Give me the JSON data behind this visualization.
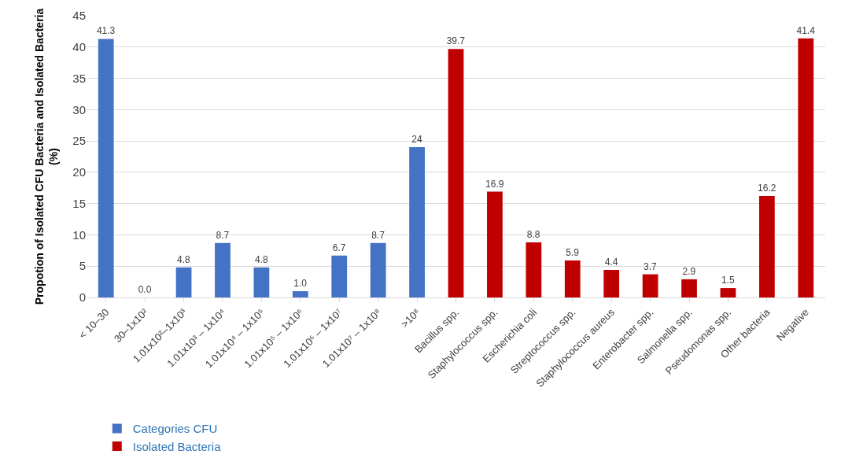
{
  "chart_data": {
    "type": "bar",
    "ylabel": "Propotion of Isolated CFU Bacteria and Isolated Bacteria (%)",
    "categories": [
      "< 10–30",
      "30–1x10²",
      "1.01x10²–1x10³",
      "1.01x10³ – 1x10⁴",
      "1.01x10⁴ – 1x10⁵",
      "1.01x10⁵ – 1x10⁶",
      "1.01x10⁶ – 1x10⁷",
      "1.01x10⁷ – 1x10⁸",
      ">10⁸",
      "Bacillus spp.",
      "Staphylococcus spp.",
      "Escherichia coli",
      "Streptococcus spp.",
      "Staphylococcus aureus",
      "Enterobacter spp.",
      "Salmonella spp.",
      "Pseudomonas spp.",
      "Other bacteria",
      "Negative"
    ],
    "series": [
      {
        "name": "Categories CFU",
        "color": "#4472c4",
        "values": [
          41.3,
          0,
          4.8,
          8.7,
          4.8,
          1.0,
          6.7,
          8.7,
          24,
          null,
          null,
          null,
          null,
          null,
          null,
          null,
          null,
          null,
          null
        ],
        "value_labels": [
          "41.3",
          "0.0",
          "4.8",
          "8.7",
          "4.8",
          "1.0",
          "6.7",
          "8.7",
          "24",
          null,
          null,
          null,
          null,
          null,
          null,
          null,
          null,
          null,
          null
        ]
      },
      {
        "name": "Isolated Bacteria",
        "color": "#c00000",
        "values": [
          null,
          null,
          null,
          null,
          null,
          null,
          null,
          null,
          null,
          39.7,
          16.9,
          8.8,
          5.9,
          4.4,
          3.7,
          2.9,
          1.5,
          16.2,
          41.4
        ],
        "value_labels": [
          null,
          null,
          null,
          null,
          null,
          null,
          null,
          null,
          null,
          "39.7",
          "16.9",
          "8.8",
          "5.9",
          "4.4",
          "3.7",
          "2.9",
          "1.5",
          "16.2",
          "41.4"
        ]
      }
    ],
    "ylim": [
      0,
      45
    ],
    "yticks": [
      0,
      5,
      10,
      15,
      20,
      25,
      30,
      35,
      40,
      45
    ],
    "grid": "y",
    "legend": "bottom left"
  }
}
